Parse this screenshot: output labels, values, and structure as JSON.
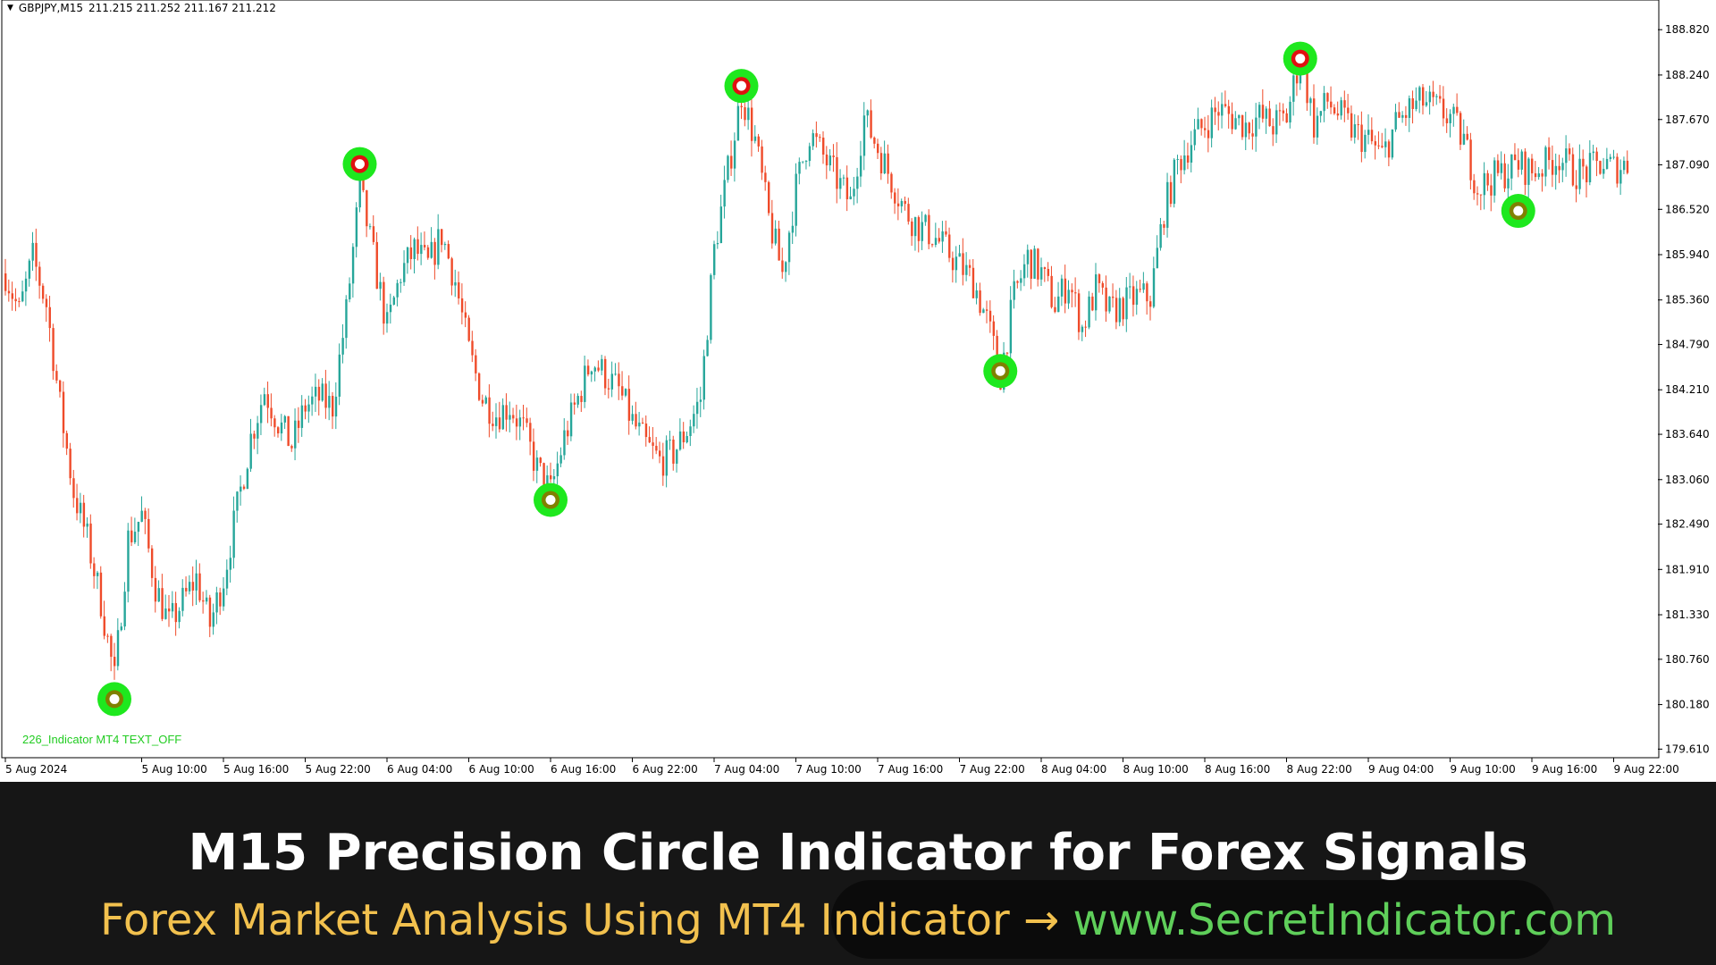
{
  "chart_window": {
    "symbol": "GBPJPY,M15",
    "ohlc": "211.215 211.252 211.167 211.212",
    "indicator_label": "226_Indicator MT4 TEXT_OFF"
  },
  "price_axis": {
    "labels": [
      "188.820",
      "188.240",
      "187.670",
      "187.090",
      "186.520",
      "185.940",
      "185.360",
      "184.790",
      "184.210",
      "183.640",
      "183.060",
      "182.490",
      "181.910",
      "181.330",
      "180.760",
      "180.180",
      "179.610"
    ]
  },
  "time_axis": {
    "labels": [
      "5 Aug 2024",
      "5 Aug 10:00",
      "5 Aug 16:00",
      "5 Aug 22:00",
      "6 Aug 04:00",
      "6 Aug 10:00",
      "6 Aug 16:00",
      "6 Aug 22:00",
      "7 Aug 04:00",
      "7 Aug 10:00",
      "7 Aug 16:00",
      "7 Aug 22:00",
      "8 Aug 04:00",
      "8 Aug 10:00",
      "8 Aug 16:00",
      "8 Aug 22:00",
      "9 Aug 04:00",
      "9 Aug 10:00",
      "9 Aug 16:00",
      "9 Aug 22:00"
    ]
  },
  "chart_data": {
    "type": "candlestick",
    "symbol": "GBPJPY",
    "timeframe": "M15",
    "ylim": [
      179.5,
      189.2
    ],
    "colors": {
      "bull": "#26a69a",
      "bear": "#ef4b2a",
      "signal_ring": "#1ee81e",
      "sell_core": "#e01010",
      "buy_core": "#808000"
    },
    "path": [
      [
        "5 Aug 2024",
        185.7
      ],
      [
        "5 Aug 01:00",
        185.2
      ],
      [
        "5 Aug 02:00",
        185.9
      ],
      [
        "5 Aug 03:00",
        185.3
      ],
      [
        "5 Aug 04:00",
        184.0
      ],
      [
        "5 Aug 05:00",
        182.9
      ],
      [
        "5 Aug 06:00",
        182.3
      ],
      [
        "5 Aug 07:00",
        181.5
      ],
      [
        "5 Aug 08:00",
        180.5
      ],
      [
        "5 Aug 09:00",
        182.3
      ],
      [
        "5 Aug 10:00",
        182.6
      ],
      [
        "5 Aug 11:00",
        181.7
      ],
      [
        "5 Aug 12:00",
        181.2
      ],
      [
        "5 Aug 13:00",
        181.5
      ],
      [
        "5 Aug 14:00",
        181.8
      ],
      [
        "5 Aug 15:00",
        181.2
      ],
      [
        "5 Aug 16:00",
        181.8
      ],
      [
        "5 Aug 17:00",
        182.7
      ],
      [
        "5 Aug 18:00",
        183.6
      ],
      [
        "5 Aug 19:00",
        184.2
      ],
      [
        "5 Aug 20:00",
        183.8
      ],
      [
        "5 Aug 21:00",
        183.5
      ],
      [
        "5 Aug 22:00",
        184.0
      ],
      [
        "5 Aug 23:00",
        184.1
      ],
      [
        "6 Aug 00:00",
        184.0
      ],
      [
        "6 Aug 01:00",
        185.2
      ],
      [
        "6 Aug 02:00",
        186.8
      ],
      [
        "6 Aug 03:00",
        185.9
      ],
      [
        "6 Aug 04:00",
        185.0
      ],
      [
        "6 Aug 05:00",
        185.7
      ],
      [
        "6 Aug 06:00",
        186.0
      ],
      [
        "6 Aug 07:00",
        185.8
      ],
      [
        "6 Aug 08:00",
        186.2
      ],
      [
        "6 Aug 09:00",
        185.6
      ],
      [
        "6 Aug 10:00",
        184.7
      ],
      [
        "6 Aug 11:00",
        184.1
      ],
      [
        "6 Aug 12:00",
        183.9
      ],
      [
        "6 Aug 13:00",
        184.0
      ],
      [
        "6 Aug 14:00",
        183.7
      ],
      [
        "6 Aug 15:00",
        183.2
      ],
      [
        "6 Aug 16:00",
        182.9
      ],
      [
        "6 Aug 17:00",
        183.6
      ],
      [
        "6 Aug 18:00",
        184.1
      ],
      [
        "6 Aug 19:00",
        184.6
      ],
      [
        "6 Aug 20:00",
        184.4
      ],
      [
        "6 Aug 21:00",
        184.2
      ],
      [
        "6 Aug 22:00",
        183.8
      ],
      [
        "6 Aug 23:00",
        183.5
      ],
      [
        "7 Aug 00:00",
        183.3
      ],
      [
        "7 Aug 01:00",
        183.4
      ],
      [
        "7 Aug 02:00",
        183.7
      ],
      [
        "7 Aug 03:00",
        184.1
      ],
      [
        "7 Aug 04:00",
        186.0
      ],
      [
        "7 Aug 05:00",
        187.0
      ],
      [
        "7 Aug 06:00",
        188.0
      ],
      [
        "7 Aug 07:00",
        187.4
      ],
      [
        "7 Aug 08:00",
        186.4
      ],
      [
        "7 Aug 09:00",
        185.7
      ],
      [
        "7 Aug 10:00",
        186.8
      ],
      [
        "7 Aug 11:00",
        187.5
      ],
      [
        "7 Aug 12:00",
        187.2
      ],
      [
        "7 Aug 13:00",
        186.9
      ],
      [
        "7 Aug 14:00",
        186.6
      ],
      [
        "7 Aug 15:00",
        187.7
      ],
      [
        "7 Aug 16:00",
        187.3
      ],
      [
        "7 Aug 17:00",
        186.9
      ],
      [
        "7 Aug 18:00",
        186.5
      ],
      [
        "7 Aug 19:00",
        186.3
      ],
      [
        "7 Aug 20:00",
        186.2
      ],
      [
        "7 Aug 21:00",
        186.0
      ],
      [
        "7 Aug 22:00",
        185.8
      ],
      [
        "7 Aug 23:00",
        185.6
      ],
      [
        "8 Aug 00:00",
        185.1
      ],
      [
        "8 Aug 01:00",
        184.4
      ],
      [
        "8 Aug 02:00",
        185.4
      ],
      [
        "8 Aug 03:00",
        185.9
      ],
      [
        "8 Aug 04:00",
        185.7
      ],
      [
        "8 Aug 05:00",
        185.3
      ],
      [
        "8 Aug 06:00",
        185.6
      ],
      [
        "8 Aug 07:00",
        185.0
      ],
      [
        "8 Aug 08:00",
        185.5
      ],
      [
        "8 Aug 09:00",
        185.2
      ],
      [
        "8 Aug 10:00",
        185.3
      ],
      [
        "8 Aug 11:00",
        185.4
      ],
      [
        "8 Aug 12:00",
        185.4
      ],
      [
        "8 Aug 13:00",
        186.5
      ],
      [
        "8 Aug 14:00",
        187.1
      ],
      [
        "8 Aug 15:00",
        187.4
      ],
      [
        "8 Aug 16:00",
        187.6
      ],
      [
        "8 Aug 17:00",
        187.8
      ],
      [
        "8 Aug 18:00",
        187.7
      ],
      [
        "8 Aug 19:00",
        187.6
      ],
      [
        "8 Aug 20:00",
        187.7
      ],
      [
        "8 Aug 21:00",
        187.6
      ],
      [
        "8 Aug 22:00",
        187.7
      ],
      [
        "8 Aug 23:00",
        188.5
      ],
      [
        "9 Aug 00:00",
        187.6
      ],
      [
        "9 Aug 01:00",
        187.9
      ],
      [
        "9 Aug 02:00",
        187.7
      ],
      [
        "9 Aug 03:00",
        187.5
      ],
      [
        "9 Aug 04:00",
        187.4
      ],
      [
        "9 Aug 05:00",
        187.2
      ],
      [
        "9 Aug 06:00",
        187.6
      ],
      [
        "9 Aug 07:00",
        187.8
      ],
      [
        "9 Aug 08:00",
        187.9
      ],
      [
        "9 Aug 09:00",
        187.8
      ],
      [
        "9 Aug 10:00",
        187.7
      ],
      [
        "9 Aug 11:00",
        187.4
      ],
      [
        "9 Aug 12:00",
        186.8
      ],
      [
        "9 Aug 13:00",
        186.9
      ],
      [
        "9 Aug 14:00",
        187.0
      ],
      [
        "9 Aug 15:00",
        187.1
      ],
      [
        "9 Aug 16:00",
        187.0
      ],
      [
        "9 Aug 17:00",
        187.1
      ],
      [
        "9 Aug 18:00",
        187.2
      ],
      [
        "9 Aug 19:00",
        187.0
      ],
      [
        "9 Aug 20:00",
        187.0
      ],
      [
        "9 Aug 21:00",
        187.1
      ],
      [
        "9 Aug 22:00",
        187.05
      ],
      [
        "9 Aug 23:00",
        187.1
      ]
    ],
    "signals": [
      {
        "type": "buy",
        "time": "5 Aug 08:00",
        "price": 180.25
      },
      {
        "type": "sell",
        "time": "6 Aug 02:00",
        "price": 187.1
      },
      {
        "type": "buy",
        "time": "6 Aug 16:00",
        "price": 182.8
      },
      {
        "type": "sell",
        "time": "7 Aug 06:00",
        "price": 188.1
      },
      {
        "type": "buy",
        "time": "8 Aug 01:00",
        "price": 184.45
      },
      {
        "type": "sell",
        "time": "8 Aug 23:00",
        "price": 188.45
      },
      {
        "type": "buy",
        "time": "9 Aug 15:00",
        "price": 186.5
      }
    ]
  },
  "banner": {
    "title": "M15 Precision Circle Indicator for Forex Signals",
    "subtitle_part1": "Forex Market Analysis Using MT4 Indicator",
    "arrow": "→",
    "subtitle_part2": "www.SecretIndicator.com"
  }
}
